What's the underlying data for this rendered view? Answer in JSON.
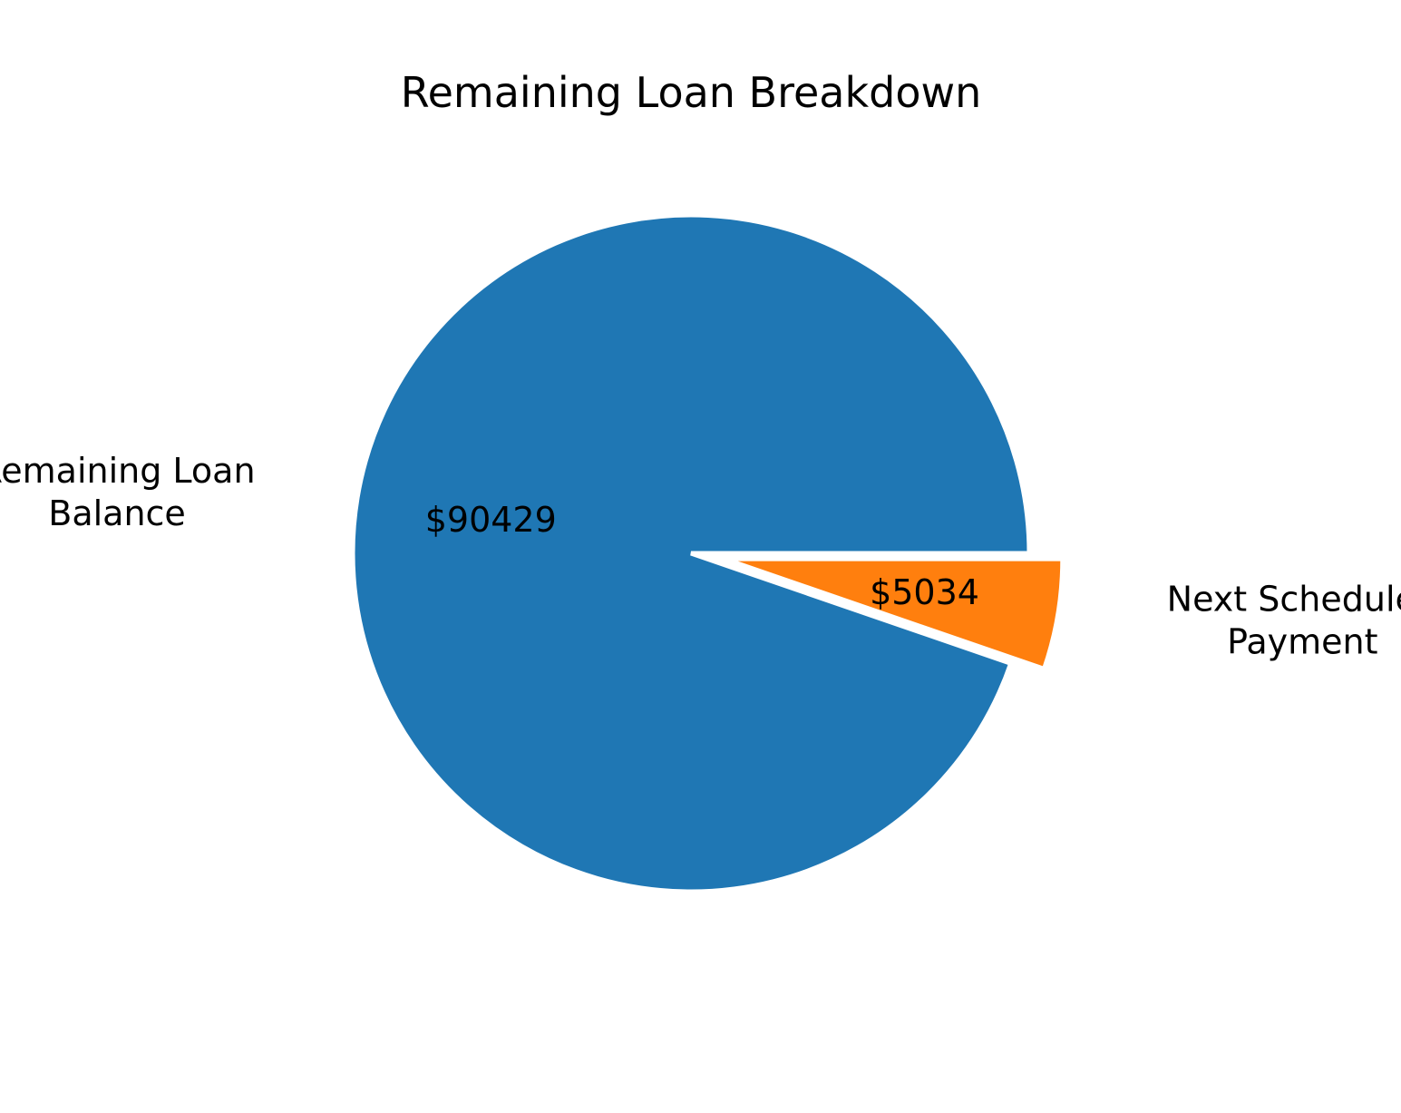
{
  "chart_data": {
    "type": "pie",
    "title": "Remaining Loan Breakdown",
    "slices": [
      {
        "label_lines": [
          "Remaining Loan",
          "Balance"
        ],
        "value": 90429,
        "value_label": "$90429",
        "color": "#1f77b4",
        "explode": 0
      },
      {
        "label_lines": [
          "Next Scheduled",
          "Payment"
        ],
        "value": 5034,
        "value_label": "$5034",
        "color": "#ff7f0e",
        "explode": 0.1
      }
    ],
    "start_angle_deg": 0,
    "direction": "counterclockwise"
  }
}
